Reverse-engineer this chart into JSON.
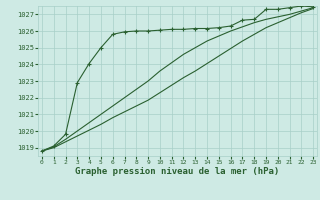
{
  "background_color": "#ceeae4",
  "grid_color": "#a8cfc8",
  "line_color": "#2a6030",
  "xlabel": "Graphe pression niveau de la mer (hPa)",
  "ylim": [
    1018.5,
    1027.5
  ],
  "xlim": [
    -0.3,
    23.3
  ],
  "yticks": [
    1019,
    1020,
    1021,
    1022,
    1023,
    1024,
    1025,
    1026,
    1027
  ],
  "xticks": [
    0,
    1,
    2,
    3,
    4,
    5,
    6,
    7,
    8,
    9,
    10,
    11,
    12,
    13,
    14,
    15,
    16,
    17,
    18,
    19,
    20,
    21,
    22,
    23
  ],
  "series1_x": [
    0,
    1,
    2,
    3,
    4,
    5,
    6,
    7,
    8,
    9,
    10,
    11,
    12,
    13,
    14,
    15,
    16,
    17,
    18,
    19,
    20,
    21,
    22,
    23
  ],
  "series1_y": [
    1018.8,
    1019.1,
    1019.8,
    1022.9,
    1024.05,
    1025.0,
    1025.8,
    1025.95,
    1026.0,
    1026.0,
    1026.05,
    1026.1,
    1026.1,
    1026.15,
    1026.15,
    1026.2,
    1026.3,
    1026.65,
    1026.7,
    1027.3,
    1027.3,
    1027.4,
    1027.5,
    1027.45
  ],
  "series2_x": [
    0,
    1,
    2,
    3,
    4,
    5,
    6,
    7,
    8,
    9,
    10,
    11,
    12,
    13,
    14,
    15,
    16,
    17,
    18,
    19,
    20,
    21,
    22,
    23
  ],
  "series2_y": [
    1018.8,
    1019.05,
    1019.5,
    1020.0,
    1020.5,
    1021.0,
    1021.5,
    1022.0,
    1022.5,
    1023.0,
    1023.6,
    1024.1,
    1024.6,
    1025.0,
    1025.4,
    1025.7,
    1026.0,
    1026.25,
    1026.5,
    1026.7,
    1026.85,
    1027.0,
    1027.2,
    1027.4
  ],
  "series3_x": [
    0,
    1,
    2,
    3,
    4,
    5,
    6,
    7,
    8,
    9,
    10,
    11,
    12,
    13,
    14,
    15,
    16,
    17,
    18,
    19,
    20,
    21,
    22,
    23
  ],
  "series3_y": [
    1018.8,
    1019.0,
    1019.35,
    1019.7,
    1020.05,
    1020.4,
    1020.8,
    1021.15,
    1021.5,
    1021.85,
    1022.3,
    1022.75,
    1023.2,
    1023.6,
    1024.05,
    1024.5,
    1024.95,
    1025.4,
    1025.8,
    1026.2,
    1026.5,
    1026.8,
    1027.1,
    1027.35
  ]
}
